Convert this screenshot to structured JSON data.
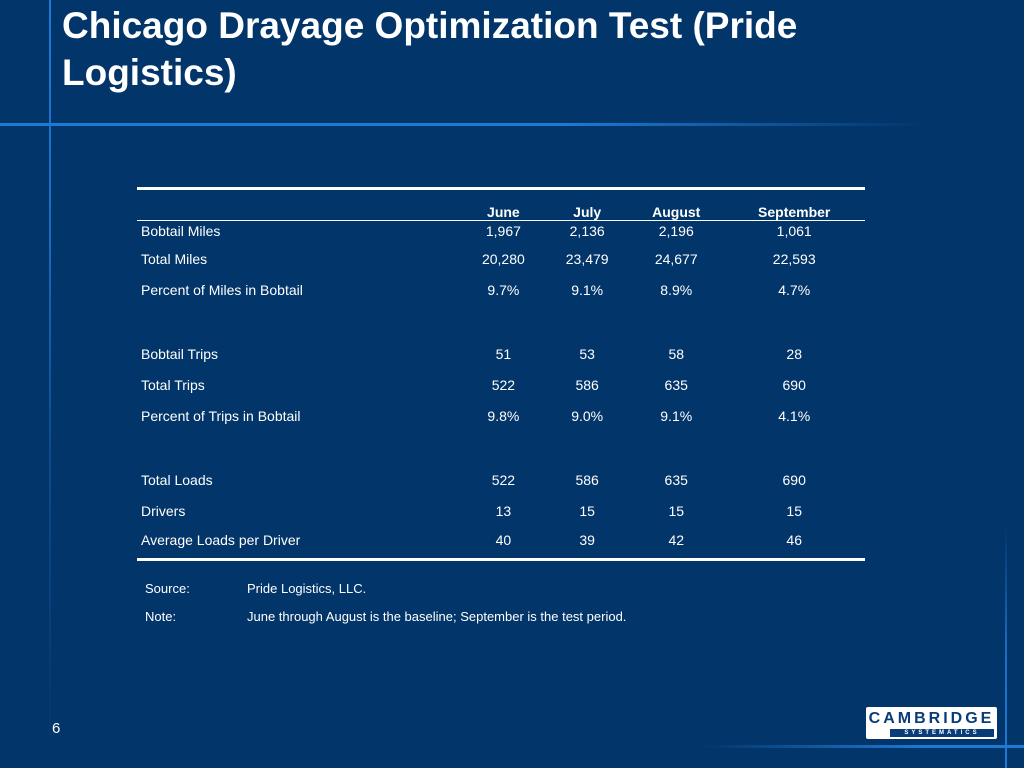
{
  "slide": {
    "title": "Chicago Drayage Optimization Test (Pride Logistics)",
    "page_number": "6"
  },
  "table": {
    "columns": [
      "June",
      "July",
      "August",
      "September"
    ],
    "rows": [
      {
        "label": "Bobtail Miles",
        "values": [
          "1,967",
          "2,136",
          "2,196",
          "1,061"
        ]
      },
      {
        "label": "Total Miles",
        "values": [
          "20,280",
          "23,479",
          "24,677",
          "22,593"
        ]
      },
      {
        "label": "Percent of Miles in Bobtail",
        "values": [
          "9.7%",
          "9.1%",
          "8.9%",
          "4.7%"
        ]
      },
      {
        "label": "Bobtail Trips",
        "values": [
          "51",
          "53",
          "58",
          "28"
        ]
      },
      {
        "label": "Total Trips",
        "values": [
          "522",
          "586",
          "635",
          "690"
        ]
      },
      {
        "label": "Percent of Trips in Bobtail",
        "values": [
          "9.8%",
          "9.0%",
          "9.1%",
          "4.1%"
        ]
      },
      {
        "label": "Total Loads",
        "values": [
          "522",
          "586",
          "635",
          "690"
        ]
      },
      {
        "label": "Drivers",
        "values": [
          "13",
          "15",
          "15",
          "15"
        ]
      },
      {
        "label": "Average Loads per Driver",
        "values": [
          "40",
          "39",
          "42",
          "46"
        ]
      }
    ]
  },
  "notes": {
    "source_label": "Source:",
    "source_text": "Pride Logistics, LLC.",
    "note_label": "Note:",
    "note_text": "June through August is the baseline; September is the test period."
  },
  "logo": {
    "name": "CAMBRIDGE",
    "subtitle": "SYSTEMATICS"
  },
  "colors": {
    "background": "#023569",
    "accent_line": "#1f7ad6",
    "text": "#ffffff",
    "logo_blue": "#0a3c78"
  }
}
